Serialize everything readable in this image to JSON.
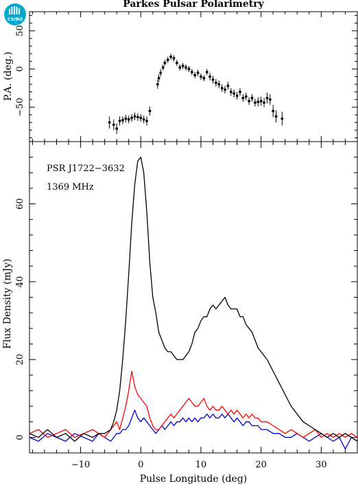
{
  "header": {
    "title": "Parkes Pulsar Polarimetry",
    "logo_text": "CSIRO"
  },
  "chart_data": [
    {
      "type": "scatter",
      "name": "pa-panel",
      "ylabel": "P.A. (deg.)",
      "xlim": [
        -18.5,
        36
      ],
      "ylim": [
        -95,
        75
      ],
      "yticks": [
        -50,
        0,
        50
      ],
      "ytick_labels": [
        "−50",
        "0",
        "50"
      ],
      "error_bars": true,
      "series": [
        {
          "color": "#000000",
          "x": [
            -5.2,
            -4.5,
            -4.0,
            -3.5,
            -3.0,
            -2.5,
            -2.0,
            -1.5,
            -1.0,
            -0.5,
            0.0,
            0.5,
            1.0,
            1.5,
            2.8,
            3.0,
            3.3,
            3.7,
            4.0,
            4.5,
            5.0,
            5.5,
            6.0,
            6.5,
            7.0,
            7.5,
            8.0,
            8.5,
            9.0,
            9.5,
            10.0,
            10.5,
            11.0,
            11.5,
            12.0,
            12.5,
            13.0,
            13.5,
            14.0,
            14.5,
            15.0,
            15.5,
            16.0,
            16.5,
            17.0,
            17.5,
            18.0,
            18.5,
            19.0,
            19.5,
            20.0,
            20.5,
            21.0,
            21.5,
            22.0,
            22.5,
            23.5
          ],
          "y": [
            -70,
            -73,
            -78,
            -68,
            -67,
            -65,
            -66,
            -64,
            -62,
            -63,
            -64,
            -66,
            -68,
            -55,
            -20,
            -12,
            -5,
            2,
            8,
            12,
            16,
            14,
            8,
            2,
            4,
            2,
            0,
            -4,
            -8,
            -5,
            -10,
            -12,
            -4,
            -10,
            -14,
            -18,
            -20,
            -25,
            -27,
            -22,
            -30,
            -32,
            -35,
            -30,
            -38,
            -36,
            -42,
            -38,
            -44,
            -43,
            -42,
            -44,
            -38,
            -40,
            -55,
            -62,
            -65
          ],
          "err": [
            8,
            7,
            7,
            6,
            5,
            5,
            5,
            5,
            5,
            5,
            5,
            5,
            6,
            6,
            6,
            5,
            5,
            4,
            4,
            4,
            4,
            4,
            4,
            4,
            4,
            4,
            4,
            4,
            4,
            4,
            4,
            4,
            4,
            5,
            5,
            5,
            5,
            5,
            5,
            5,
            5,
            5,
            5,
            5,
            5,
            5,
            5,
            5,
            5,
            6,
            6,
            6,
            7,
            7,
            8,
            8,
            9
          ]
        }
      ]
    },
    {
      "type": "line",
      "name": "flux-panel",
      "xlabel": "Pulse Longitude (deg)",
      "ylabel": "Flux Density (mJy)",
      "xlim": [
        -18.5,
        36
      ],
      "ylim": [
        -4,
        76
      ],
      "xticks": [
        -10,
        0,
        10,
        20,
        30
      ],
      "xtick_labels": [
        "−10",
        "0",
        "10",
        "20",
        "30"
      ],
      "yticks": [
        0,
        20,
        40,
        60
      ],
      "ytick_labels": [
        "0",
        "20",
        "40",
        "60"
      ],
      "annotations": [
        "PSR J1722−3632",
        "1369 MHz"
      ],
      "series": [
        {
          "color": "#000000",
          "x": [
            -18.5,
            -17,
            -15.5,
            -14,
            -12.5,
            -11,
            -9.5,
            -8,
            -7,
            -6,
            -5,
            -4.5,
            -4,
            -3.5,
            -3,
            -2.5,
            -2,
            -1.5,
            -1,
            -0.5,
            0,
            0.5,
            1,
            1.5,
            2,
            2.5,
            3,
            3.5,
            4,
            4.5,
            5,
            5.5,
            6,
            6.5,
            7,
            7.5,
            8,
            8.5,
            9,
            9.5,
            10,
            10.5,
            11,
            11.5,
            12,
            12.5,
            13,
            13.5,
            14,
            14.5,
            15,
            15.5,
            16,
            16.5,
            17,
            17.5,
            18,
            18.5,
            19,
            19.5,
            20,
            21,
            22,
            23,
            24,
            25,
            26,
            27,
            28,
            29,
            30,
            31,
            32,
            33,
            34,
            35,
            36
          ],
          "y": [
            1,
            0,
            2,
            0,
            1,
            -1,
            1,
            0,
            1,
            1,
            2,
            4,
            7,
            12,
            20,
            30,
            42,
            55,
            65,
            71,
            72,
            68,
            58,
            45,
            36,
            32,
            27,
            25,
            23,
            22,
            22,
            21,
            20,
            20,
            20,
            21,
            22,
            24,
            27,
            28,
            30,
            31,
            31,
            33,
            34,
            33,
            34,
            35,
            36,
            34,
            33,
            33,
            33,
            31,
            31,
            29,
            28,
            27,
            25,
            23,
            22,
            20,
            17,
            14,
            11,
            8,
            6,
            4,
            3,
            2,
            1,
            0,
            1,
            0,
            1,
            0,
            -1
          ]
        },
        {
          "color": "#ff0000",
          "x": [
            -18.5,
            -17,
            -15.5,
            -14,
            -12.5,
            -11,
            -9.5,
            -8,
            -7,
            -6,
            -5,
            -4.5,
            -4,
            -3.5,
            -3,
            -2.5,
            -2,
            -1.5,
            -1,
            -0.5,
            0,
            0.5,
            1,
            1.5,
            2,
            2.5,
            3,
            3.5,
            4,
            4.5,
            5,
            5.5,
            6,
            6.5,
            7,
            7.5,
            8,
            8.5,
            9,
            9.5,
            10,
            10.5,
            11,
            11.5,
            12,
            12.5,
            13,
            13.5,
            14,
            14.5,
            15,
            15.5,
            16,
            16.5,
            17,
            17.5,
            18,
            18.5,
            19,
            19.5,
            20,
            21,
            22,
            23,
            24,
            25,
            26,
            27,
            28,
            29,
            30,
            31,
            32,
            33,
            34,
            35,
            36
          ],
          "y": [
            1,
            2,
            0,
            1,
            2,
            0,
            1,
            2,
            1,
            0,
            2,
            3,
            4,
            2,
            5,
            8,
            12,
            17,
            13,
            11,
            10,
            9,
            8,
            5,
            3,
            2,
            2,
            3,
            4,
            5,
            6,
            5,
            6,
            7,
            8,
            9,
            10,
            9,
            8,
            8,
            9,
            10,
            8,
            7,
            8,
            7,
            7,
            8,
            7,
            6,
            7,
            6,
            7,
            6,
            5,
            6,
            5,
            6,
            5,
            5,
            4,
            4,
            3,
            2,
            1,
            2,
            1,
            0,
            1,
            2,
            0,
            1,
            0,
            1,
            0,
            1,
            0
          ]
        },
        {
          "color": "#0000cc",
          "x": [
            -18.5,
            -17,
            -15.5,
            -14,
            -12.5,
            -11,
            -9.5,
            -8,
            -7,
            -6,
            -5,
            -4.5,
            -4,
            -3.5,
            -3,
            -2.5,
            -2,
            -1.5,
            -1,
            -0.5,
            0,
            0.5,
            1,
            1.5,
            2,
            2.5,
            3,
            3.5,
            4,
            4.5,
            5,
            5.5,
            6,
            6.5,
            7,
            7.5,
            8,
            8.5,
            9,
            9.5,
            10,
            10.5,
            11,
            11.5,
            12,
            12.5,
            13,
            13.5,
            14,
            14.5,
            15,
            15.5,
            16,
            16.5,
            17,
            17.5,
            18,
            18.5,
            19,
            19.5,
            20,
            21,
            22,
            23,
            24,
            25,
            26,
            27,
            28,
            29,
            30,
            31,
            32,
            33,
            34,
            35,
            36
          ],
          "y": [
            0,
            -1,
            1,
            0,
            -1,
            1,
            0,
            -1,
            1,
            0,
            -1,
            0,
            1,
            1,
            2,
            2,
            3,
            5,
            7,
            5,
            4,
            5,
            4,
            3,
            2,
            1,
            2,
            3,
            2,
            3,
            4,
            3,
            4,
            4,
            5,
            4,
            5,
            4,
            5,
            4,
            5,
            5,
            6,
            5,
            6,
            5,
            5,
            6,
            5,
            6,
            5,
            4,
            5,
            4,
            3,
            4,
            4,
            3,
            3,
            3,
            2,
            2,
            1,
            1,
            0,
            0,
            1,
            0,
            -1,
            0,
            1,
            0,
            -1,
            0,
            -3,
            0,
            -1
          ]
        }
      ]
    }
  ]
}
